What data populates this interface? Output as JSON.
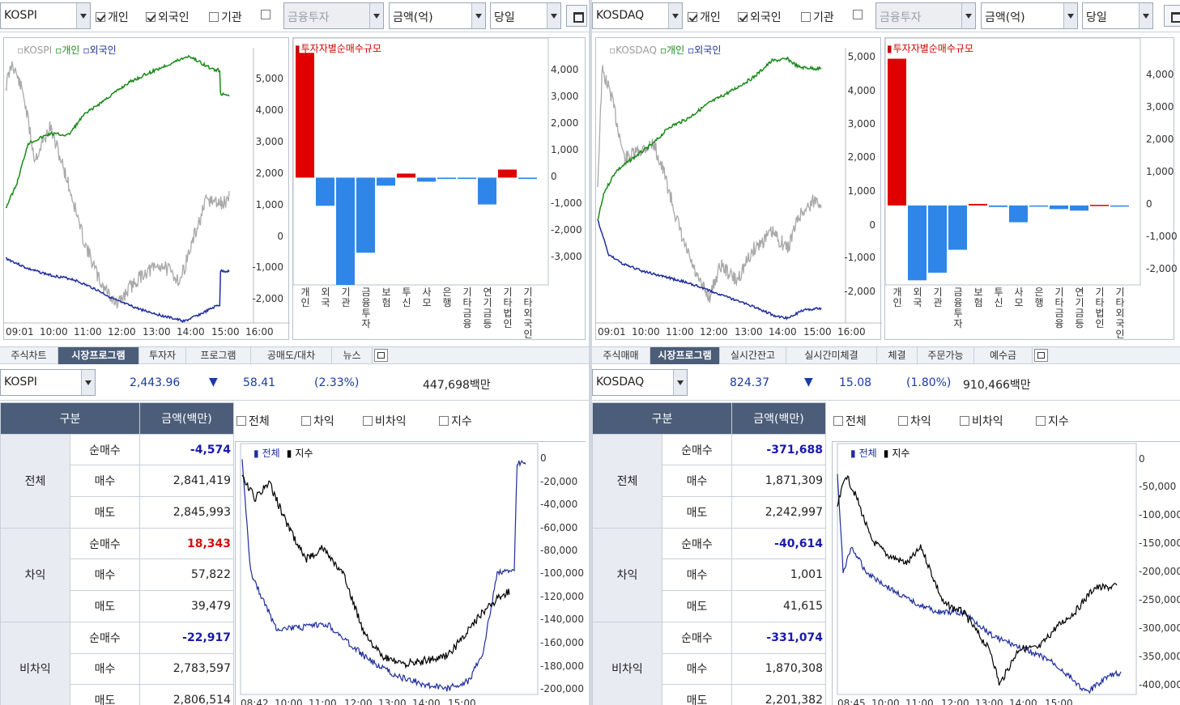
{
  "left": {
    "market": "KOSPI",
    "chk_individual": "개인",
    "chk_foreign": "외국인",
    "chk_inst": "기관",
    "investor_select": "금융투자",
    "unit_select": "금액(억)",
    "period_select": "당일",
    "line_legend": {
      "index": "KOSPI",
      "ind": "개인",
      "for": "외국인"
    },
    "line_ticks": [
      "5,000",
      "4,000",
      "3,000",
      "2,000",
      "1,000",
      "0",
      "-1,000",
      "-2,000"
    ],
    "time_ticks": [
      "09:01",
      "10:00",
      "11:00",
      "12:00",
      "13:00",
      "14:00",
      "15:00",
      "16:00"
    ],
    "bar_title": "투자자별순매수규모",
    "bar_ticks": [
      "4,000",
      "3,000",
      "2,000",
      "1,000",
      "0",
      "-1,000",
      "-2,000",
      "-3,000"
    ],
    "bar_chart": {
      "type": "bar",
      "categories": [
        "개인",
        "외국",
        "기관",
        "금융투자",
        "보험",
        "투신",
        "사모",
        "은행",
        "기타금융",
        "연기금등",
        "기타법인",
        "기타외국인"
      ],
      "values": [
        4650,
        -1050,
        -4000,
        -2800,
        -300,
        150,
        -150,
        -50,
        -50,
        -1000,
        300,
        -50
      ],
      "ylim": [
        -4000,
        4600
      ]
    },
    "tabs": [
      "주식차트",
      "시장프로그램",
      "투자자",
      "프로그램",
      "공매도/대차",
      "뉴스"
    ],
    "active_tab": "시장프로그램",
    "info": {
      "index": "2,443.96",
      "change": "58.41",
      "pct": "(2.33%)",
      "volume": "447,698백만",
      "arrow": "▼"
    },
    "table": {
      "col1": "구분",
      "col2": "금액(백만)",
      "groups": [
        {
          "name": "전체",
          "rows": [
            {
              "k": "순매수",
              "v": "-4,574"
            },
            {
              "k": "매수",
              "v": "2,841,419"
            },
            {
              "k": "매도",
              "v": "2,845,993"
            }
          ]
        },
        {
          "name": "차익",
          "rows": [
            {
              "k": "순매수",
              "v": "18,343"
            },
            {
              "k": "매수",
              "v": "57,822"
            },
            {
              "k": "매도",
              "v": "39,479"
            }
          ]
        },
        {
          "name": "비차익",
          "rows": [
            {
              "k": "순매수",
              "v": "-22,917"
            },
            {
              "k": "매수",
              "v": "2,783,597"
            },
            {
              "k": "매도",
              "v": "2,806,514"
            }
          ]
        }
      ]
    },
    "prog_checks": [
      "전체",
      "차익",
      "비차익",
      "지수"
    ],
    "prog_legend": [
      "전체",
      "지수"
    ],
    "prog_ticks": [
      "0",
      "-20,000",
      "-40,000",
      "-60,000",
      "-80,000",
      "-100,000",
      "-120,000",
      "-140,000",
      "-160,000",
      "-180,000",
      "-200,000"
    ],
    "prog_time": [
      "08:42",
      "10:00",
      "11:00",
      "12:00",
      "13:00",
      "14:00",
      "15:00"
    ]
  },
  "right": {
    "market": "KOSDAQ",
    "chk_individual": "개인",
    "chk_foreign": "외국인",
    "chk_inst": "기관",
    "investor_select": "금융투자",
    "unit_select": "금액(억)",
    "period_select": "당일",
    "line_legend": {
      "index": "KOSDAQ",
      "ind": "개인",
      "for": "외국인"
    },
    "line_ticks": [
      "5,000",
      "4,000",
      "3,000",
      "2,000",
      "1,000",
      "0",
      "-1,000",
      "-2,000"
    ],
    "time_ticks": [
      "09:01",
      "10:00",
      "11:00",
      "12:00",
      "13:00",
      "14:00",
      "15:00",
      "16:00"
    ],
    "bar_title": "투자자별순매수규모",
    "bar_ticks": [
      "4,000",
      "3,000",
      "2,000",
      "1,000",
      "0",
      "-1,000",
      "-2,000"
    ],
    "bar_chart": {
      "type": "bar",
      "categories": [
        "개인",
        "외국",
        "기관",
        "금융투자",
        "보험",
        "투신",
        "사모",
        "은행",
        "기타금융",
        "연기금등",
        "기타법인",
        "기타외국인"
      ],
      "values": [
        4800,
        -2450,
        -2200,
        -1450,
        50,
        -50,
        -550,
        -20,
        -120,
        -170,
        20,
        -30
      ],
      "ylim": [
        -2600,
        5000
      ]
    },
    "tabs": [
      "주식매매",
      "시장프로그램",
      "실시간잔고",
      "실시간미체결",
      "체결",
      "주문가능",
      "예수금"
    ],
    "active_tab": "시장프로그램",
    "info": {
      "index": "824.37",
      "change": "15.08",
      "pct": "(1.80%)",
      "volume": "910,466백만",
      "arrow": "▼"
    },
    "table": {
      "col1": "구분",
      "col2": "금액(백만)",
      "groups": [
        {
          "name": "전체",
          "rows": [
            {
              "k": "순매수",
              "v": "-371,688"
            },
            {
              "k": "매수",
              "v": "1,871,309"
            },
            {
              "k": "매도",
              "v": "2,242,997"
            }
          ]
        },
        {
          "name": "차익",
          "rows": [
            {
              "k": "순매수",
              "v": "-40,614"
            },
            {
              "k": "매수",
              "v": "1,001"
            },
            {
              "k": "매도",
              "v": "41,615"
            }
          ]
        },
        {
          "name": "비차익",
          "rows": [
            {
              "k": "순매수",
              "v": "-331,074"
            },
            {
              "k": "매수",
              "v": "1,870,308"
            },
            {
              "k": "매도",
              "v": "2,201,382"
            }
          ]
        }
      ]
    },
    "prog_checks": [
      "전체",
      "차익",
      "비차익",
      "지수"
    ],
    "prog_legend": [
      "전체",
      "지수"
    ],
    "prog_ticks": [
      "0",
      "-50,000",
      "-100,000",
      "-150,000",
      "-200,000",
      "-250,000",
      "-300,000",
      "-350,000",
      "-400,000"
    ],
    "prog_time": [
      "08:45",
      "10:00",
      "11:00",
      "12:00",
      "13:00",
      "14:00",
      "15:00"
    ]
  },
  "colors": {
    "ind": "#1a8a1a",
    "for": "#1f2e9c",
    "index": "#a9a9a9",
    "pos": "#e00000",
    "neg": "#2f86e8",
    "header": "#4b5d78"
  }
}
